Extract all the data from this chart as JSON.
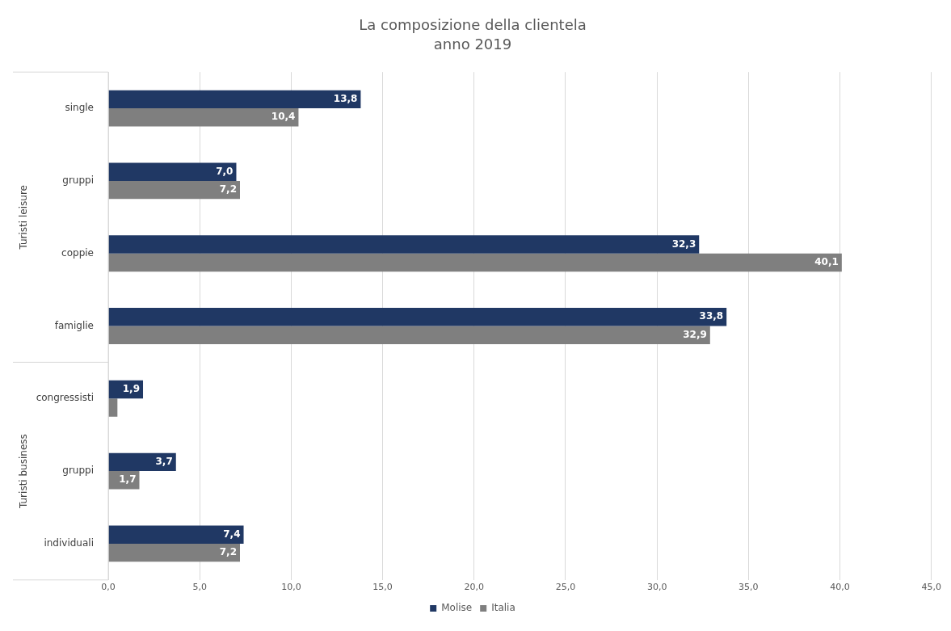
{
  "chart_data": {
    "type": "bar",
    "orientation": "horizontal",
    "title": "La composizione della clientela",
    "subtitle": "anno 2019",
    "categories": [
      "single",
      "gruppi",
      "coppie",
      "famiglie",
      "congressisti",
      "gruppi",
      "individuali"
    ],
    "series": [
      {
        "name": "Molise",
        "color": "#203864",
        "values": [
          13.8,
          7.0,
          32.3,
          33.8,
          1.9,
          3.7,
          7.4
        ],
        "value_labels": [
          "13,8",
          "7,0",
          "32,3",
          "33,8",
          "1,9",
          "3,7",
          "7,4"
        ]
      },
      {
        "name": "Italia",
        "color": "#7f7f7f",
        "values": [
          10.4,
          7.2,
          40.1,
          32.9,
          0.5,
          1.7,
          7.2
        ],
        "value_labels": [
          "10,4",
          "7,2",
          "40,1",
          "32,9",
          null,
          "1,7",
          "7,2"
        ]
      }
    ],
    "xlim": [
      0,
      45
    ],
    "xticks": [
      {
        "value": 0,
        "label": "0,0"
      },
      {
        "value": 5,
        "label": "5,0"
      },
      {
        "value": 10,
        "label": "10,0"
      },
      {
        "value": 15,
        "label": "15,0"
      },
      {
        "value": 20,
        "label": "20,0"
      },
      {
        "value": 25,
        "label": "25,0"
      },
      {
        "value": 30,
        "label": "30,0"
      },
      {
        "value": 35,
        "label": "35,0"
      },
      {
        "value": 40,
        "label": "40,0"
      },
      {
        "value": 45,
        "label": "45,0"
      }
    ],
    "annotations": [
      "Turisti leisure",
      "Turisti business"
    ],
    "grid": "x",
    "legend": "bottom"
  }
}
